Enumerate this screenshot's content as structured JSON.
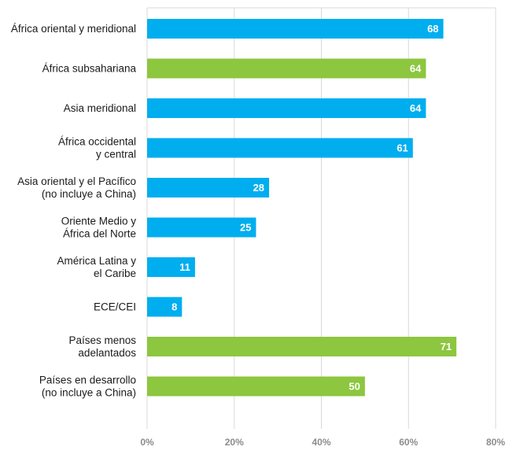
{
  "chart_data": {
    "type": "bar",
    "orientation": "horizontal",
    "categories": [
      [
        "África oriental y meridional"
      ],
      [
        "África subsahariana"
      ],
      [
        "Asia meridional"
      ],
      [
        "África occidental",
        "y central"
      ],
      [
        "Asia oriental y el Pacífico",
        "(no incluye a China)"
      ],
      [
        "Oriente Medio y",
        "África del Norte"
      ],
      [
        "América Latina y",
        "el Caribe"
      ],
      [
        "ECE/CEI"
      ],
      [
        "Países menos",
        "adelantados"
      ],
      [
        "Países en desarrollo",
        "(no incluye a China)"
      ]
    ],
    "values": [
      68,
      64,
      64,
      61,
      28,
      25,
      11,
      8,
      71,
      50
    ],
    "bar_colors": [
      "#00aeef",
      "#8dc63f",
      "#00aeef",
      "#00aeef",
      "#00aeef",
      "#00aeef",
      "#00aeef",
      "#00aeef",
      "#8dc63f",
      "#8dc63f"
    ],
    "value_labels": [
      "68",
      "64",
      "64",
      "61",
      "28",
      "25",
      "11",
      "8",
      "71",
      "50"
    ],
    "xlim": [
      0,
      80
    ],
    "x_ticks": [
      0,
      20,
      40,
      60,
      80
    ],
    "x_tick_labels": [
      "0%",
      "20%",
      "40%",
      "60%",
      "80%"
    ],
    "title": "",
    "xlabel": "",
    "ylabel": "",
    "grid": true,
    "legend": "none"
  },
  "colors": {
    "primary_bar": "#00aeef",
    "highlight_bar": "#8dc63f",
    "grid": "#d9d9d9",
    "tick_text": "#8c8c8c"
  }
}
